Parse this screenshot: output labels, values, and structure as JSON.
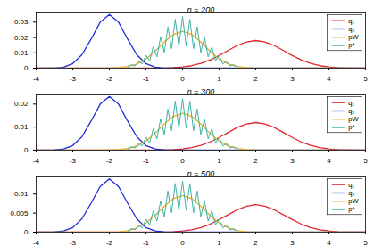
{
  "chart_data": [
    {
      "type": "line",
      "title": "n = 200",
      "legend": "top-right",
      "xlim": [
        -4,
        5
      ],
      "xticks": [
        -4,
        -3,
        -2,
        -1,
        0,
        1,
        2,
        3,
        4,
        5
      ],
      "ylim": [
        0,
        0.036
      ],
      "yticks": [
        0,
        0.01,
        0.02,
        0.03
      ],
      "series": [
        {
          "name": "q₁",
          "color": "#e3262b",
          "x": [
            -4,
            -3.75,
            -3.5,
            -3.25,
            -3,
            -2.75,
            -2.5,
            -2.25,
            -2,
            -1.75,
            -1.5,
            -1.25,
            -1,
            -0.75,
            -0.5,
            -0.25,
            0,
            0.25,
            0.5,
            0.75,
            1,
            1.25,
            1.5,
            1.75,
            2,
            2.25,
            2.5,
            2.75,
            3,
            3.25,
            3.5,
            3.75,
            4,
            4.25,
            4.5,
            4.75,
            5
          ],
          "values": [
            0,
            0,
            0,
            0,
            0,
            0,
            0,
            0,
            0,
            0,
            0,
            0,
            0,
            0,
            0.0001,
            0.0003,
            0.0008,
            0.0016,
            0.0031,
            0.0053,
            0.0082,
            0.0116,
            0.0148,
            0.0171,
            0.018,
            0.0171,
            0.0148,
            0.0116,
            0.0082,
            0.0053,
            0.0031,
            0.0016,
            0.0008,
            0.0003,
            0.0001,
            0,
            0
          ]
        },
        {
          "name": "q₂",
          "color": "#1f2bd6",
          "x": [
            -4,
            -3.75,
            -3.5,
            -3.25,
            -3,
            -2.75,
            -2.5,
            -2.25,
            -2,
            -1.75,
            -1.5,
            -1.25,
            -1,
            -0.75,
            -0.5,
            -0.25,
            0,
            0.25,
            0.5,
            0.75,
            1,
            1.25,
            1.5,
            1.75,
            2,
            2.25,
            2.5,
            2.75,
            3,
            3.25,
            3.5,
            3.75,
            4,
            4.25,
            4.5,
            4.75,
            5
          ],
          "values": [
            0,
            0,
            0.0001,
            0.0007,
            0.003,
            0.0087,
            0.0189,
            0.03,
            0.035,
            0.03,
            0.0189,
            0.0087,
            0.003,
            0.0007,
            0.0001,
            0,
            0,
            0,
            0,
            0,
            0,
            0,
            0,
            0,
            0,
            0,
            0,
            0,
            0,
            0,
            0,
            0,
            0,
            0,
            0,
            0,
            0
          ]
        },
        {
          "name": "pW",
          "color": "#e3b02a",
          "x": [
            -4,
            -3.75,
            -3.5,
            -3.25,
            -3,
            -2.75,
            -2.5,
            -2.25,
            -2,
            -1.75,
            -1.5,
            -1.25,
            -1,
            -0.75,
            -0.5,
            -0.25,
            0,
            0.25,
            0.5,
            0.75,
            1,
            1.25,
            1.5,
            1.75,
            2,
            2.25,
            2.5,
            2.75,
            3,
            3.25,
            3.5,
            3.75,
            4,
            4.25,
            4.5,
            4.75,
            5
          ],
          "values": [
            0,
            0,
            0,
            0,
            0,
            0,
            0,
            0,
            0.0001,
            0.0003,
            0.0011,
            0.0027,
            0.006,
            0.011,
            0.017,
            0.022,
            0.024,
            0.022,
            0.017,
            0.011,
            0.006,
            0.0027,
            0.0011,
            0.0003,
            0.0001,
            0,
            0,
            0,
            0,
            0,
            0,
            0,
            0,
            0,
            0,
            0,
            0
          ]
        },
        {
          "name": "p*",
          "color": "#3fb3a6",
          "x": [
            -1.5,
            -1.4,
            -1.3,
            -1.2,
            -1.1,
            -1,
            -0.9,
            -0.8,
            -0.7,
            -0.6,
            -0.5,
            -0.4,
            -0.3,
            -0.2,
            -0.1,
            0,
            0.1,
            0.2,
            0.3,
            0.4,
            0.5,
            0.6,
            0.7,
            0.8,
            0.9,
            1,
            1.1,
            1.2,
            1.3,
            1.4,
            1.5
          ],
          "values": [
            0.0006,
            0.0022,
            0.0014,
            0.0045,
            0.0027,
            0.0084,
            0.0047,
            0.0139,
            0.0073,
            0.0204,
            0.0102,
            0.0269,
            0.0127,
            0.0319,
            0.0142,
            0.0336,
            0.0142,
            0.0319,
            0.0127,
            0.0269,
            0.0102,
            0.0204,
            0.0073,
            0.0139,
            0.0047,
            0.0084,
            0.0027,
            0.0045,
            0.0014,
            0.0022,
            0.0006
          ]
        }
      ]
    },
    {
      "type": "line",
      "title": "n = 300",
      "legend": "top-right",
      "xlim": [
        -4,
        5
      ],
      "xticks": [
        -4,
        -3,
        -2,
        -1,
        0,
        1,
        2,
        3,
        4,
        5
      ],
      "ylim": [
        0,
        0.024
      ],
      "yticks": [
        0,
        0.01,
        0.02
      ],
      "series": [
        {
          "name": "q₁",
          "color": "#e3262b",
          "x": [
            -4,
            -3.75,
            -3.5,
            -3.25,
            -3,
            -2.75,
            -2.5,
            -2.25,
            -2,
            -1.75,
            -1.5,
            -1.25,
            -1,
            -0.75,
            -0.5,
            -0.25,
            0,
            0.25,
            0.5,
            0.75,
            1,
            1.25,
            1.5,
            1.75,
            2,
            2.25,
            2.5,
            2.75,
            3,
            3.25,
            3.5,
            3.75,
            4,
            4.25,
            4.5,
            4.75,
            5
          ],
          "values": [
            0,
            0,
            0,
            0,
            0,
            0,
            0,
            0,
            0,
            0,
            0,
            0,
            0,
            0,
            0.0001,
            0.0002,
            0.0005,
            0.0011,
            0.0021,
            0.0035,
            0.0055,
            0.0077,
            0.0099,
            0.0114,
            0.012,
            0.0114,
            0.0099,
            0.0077,
            0.0055,
            0.0035,
            0.0021,
            0.0011,
            0.0005,
            0.0002,
            0.0001,
            0,
            0
          ]
        },
        {
          "name": "q₂",
          "color": "#1f2bd6",
          "x": [
            -4,
            -3.75,
            -3.5,
            -3.25,
            -3,
            -2.75,
            -2.5,
            -2.25,
            -2,
            -1.75,
            -1.5,
            -1.25,
            -1,
            -0.75,
            -0.5,
            -0.25,
            0,
            0.25,
            0.5,
            0.75,
            1,
            1.25,
            1.5,
            1.75,
            2,
            2.25,
            2.5,
            2.75,
            3,
            3.25,
            3.5,
            3.75,
            4,
            4.25,
            4.5,
            4.75,
            5
          ],
          "values": [
            0,
            0,
            0.0001,
            0.0005,
            0.002,
            0.0058,
            0.0126,
            0.02,
            0.0233,
            0.02,
            0.0126,
            0.0058,
            0.002,
            0.0005,
            0.0001,
            0,
            0,
            0,
            0,
            0,
            0,
            0,
            0,
            0,
            0,
            0,
            0,
            0,
            0,
            0,
            0,
            0,
            0,
            0,
            0,
            0,
            0
          ]
        },
        {
          "name": "pW",
          "color": "#e3b02a",
          "x": [
            -4,
            -3.75,
            -3.5,
            -3.25,
            -3,
            -2.75,
            -2.5,
            -2.25,
            -2,
            -1.75,
            -1.5,
            -1.25,
            -1,
            -0.75,
            -0.5,
            -0.25,
            0,
            0.25,
            0.5,
            0.75,
            1,
            1.25,
            1.5,
            1.75,
            2,
            2.25,
            2.5,
            2.75,
            3,
            3.25,
            3.5,
            3.75,
            4,
            4.25,
            4.5,
            4.75,
            5
          ],
          "values": [
            0,
            0,
            0,
            0,
            0,
            0,
            0,
            0,
            0.0001,
            0.0002,
            0.0007,
            0.0018,
            0.004,
            0.0073,
            0.0113,
            0.0147,
            0.016,
            0.0147,
            0.0113,
            0.0073,
            0.004,
            0.0018,
            0.0007,
            0.0002,
            0.0001,
            0,
            0,
            0,
            0,
            0,
            0,
            0,
            0,
            0,
            0,
            0,
            0
          ]
        },
        {
          "name": "p*",
          "color": "#3fb3a6",
          "x": [
            -1.5,
            -1.4,
            -1.3,
            -1.2,
            -1.1,
            -1,
            -0.9,
            -0.8,
            -0.7,
            -0.6,
            -0.5,
            -0.4,
            -0.3,
            -0.2,
            -0.1,
            0,
            0.1,
            0.2,
            0.3,
            0.4,
            0.5,
            0.6,
            0.7,
            0.8,
            0.9,
            1,
            1.1,
            1.2,
            1.3,
            1.4,
            1.5
          ],
          "values": [
            0.0004,
            0.0015,
            0.0009,
            0.003,
            0.0018,
            0.0056,
            0.0031,
            0.0093,
            0.0049,
            0.0136,
            0.0068,
            0.0179,
            0.0085,
            0.0213,
            0.0095,
            0.0224,
            0.0095,
            0.0213,
            0.0085,
            0.0179,
            0.0068,
            0.0136,
            0.0049,
            0.0093,
            0.0031,
            0.0056,
            0.0018,
            0.003,
            0.0009,
            0.0015,
            0.0004
          ]
        }
      ]
    },
    {
      "type": "line",
      "title": "n = 500",
      "legend": "top-right",
      "xlim": [
        -4,
        5
      ],
      "xticks": [
        -4,
        -3,
        -2,
        -1,
        0,
        1,
        2,
        3,
        4,
        5
      ],
      "ylim": [
        0,
        0.0145
      ],
      "yticks": [
        0,
        0.005,
        0.01
      ],
      "series": [
        {
          "name": "q₁",
          "color": "#e3262b",
          "x": [
            -4,
            -3.75,
            -3.5,
            -3.25,
            -3,
            -2.75,
            -2.5,
            -2.25,
            -2,
            -1.75,
            -1.5,
            -1.25,
            -1,
            -0.75,
            -0.5,
            -0.25,
            0,
            0.25,
            0.5,
            0.75,
            1,
            1.25,
            1.5,
            1.75,
            2,
            2.25,
            2.5,
            2.75,
            3,
            3.25,
            3.5,
            3.75,
            4,
            4.25,
            4.5,
            4.75,
            5
          ],
          "values": [
            0,
            0,
            0,
            0,
            0,
            0,
            0,
            0,
            0,
            0,
            0,
            0,
            0,
            0,
            0,
            0.0001,
            0.0003,
            0.0006,
            0.0012,
            0.0021,
            0.0033,
            0.0046,
            0.0059,
            0.0068,
            0.0072,
            0.0068,
            0.0059,
            0.0046,
            0.0033,
            0.0021,
            0.0012,
            0.0006,
            0.0003,
            0.0001,
            0,
            0,
            0
          ]
        },
        {
          "name": "q₂",
          "color": "#1f2bd6",
          "x": [
            -4,
            -3.75,
            -3.5,
            -3.25,
            -3,
            -2.75,
            -2.5,
            -2.25,
            -2,
            -1.75,
            -1.5,
            -1.25,
            -1,
            -0.75,
            -0.5,
            -0.25,
            0,
            0.25,
            0.5,
            0.75,
            1,
            1.25,
            1.5,
            1.75,
            2,
            2.25,
            2.5,
            2.75,
            3,
            3.25,
            3.5,
            3.75,
            4,
            4.25,
            4.5,
            4.75,
            5
          ],
          "values": [
            0,
            0,
            0.0001,
            0.0003,
            0.0012,
            0.0035,
            0.0076,
            0.012,
            0.014,
            0.012,
            0.0076,
            0.0035,
            0.0012,
            0.0003,
            0.0001,
            0,
            0,
            0,
            0,
            0,
            0,
            0,
            0,
            0,
            0,
            0,
            0,
            0,
            0,
            0,
            0,
            0,
            0,
            0,
            0,
            0,
            0
          ]
        },
        {
          "name": "pW",
          "color": "#e3b02a",
          "x": [
            -4,
            -3.75,
            -3.5,
            -3.25,
            -3,
            -2.75,
            -2.5,
            -2.25,
            -2,
            -1.75,
            -1.5,
            -1.25,
            -1,
            -0.75,
            -0.5,
            -0.25,
            0,
            0.25,
            0.5,
            0.75,
            1,
            1.25,
            1.5,
            1.75,
            2,
            2.25,
            2.5,
            2.75,
            3,
            3.25,
            3.5,
            3.75,
            4,
            4.25,
            4.5,
            4.75,
            5
          ],
          "values": [
            0,
            0,
            0,
            0,
            0,
            0,
            0,
            0,
            0,
            0.0001,
            0.0004,
            0.0011,
            0.0024,
            0.0044,
            0.0068,
            0.0088,
            0.0096,
            0.0088,
            0.0068,
            0.0044,
            0.0024,
            0.0011,
            0.0004,
            0.0001,
            0,
            0,
            0,
            0,
            0,
            0,
            0,
            0,
            0,
            0,
            0,
            0,
            0
          ]
        },
        {
          "name": "p*",
          "color": "#3fb3a6",
          "x": [
            -1.5,
            -1.4,
            -1.3,
            -1.2,
            -1.1,
            -1,
            -0.9,
            -0.8,
            -0.7,
            -0.6,
            -0.5,
            -0.4,
            -0.3,
            -0.2,
            -0.1,
            0,
            0.1,
            0.2,
            0.3,
            0.4,
            0.5,
            0.6,
            0.7,
            0.8,
            0.9,
            1,
            1.1,
            1.2,
            1.3,
            1.4,
            1.5
          ],
          "values": [
            0.0002,
            0.0009,
            0.0006,
            0.0018,
            0.0011,
            0.0034,
            0.0019,
            0.0056,
            0.0029,
            0.0082,
            0.0041,
            0.0108,
            0.0051,
            0.0128,
            0.0057,
            0.0134,
            0.0057,
            0.0128,
            0.0051,
            0.0108,
            0.0041,
            0.0082,
            0.0029,
            0.0056,
            0.0019,
            0.0034,
            0.0011,
            0.0018,
            0.0006,
            0.0009,
            0.0002
          ]
        }
      ]
    }
  ]
}
